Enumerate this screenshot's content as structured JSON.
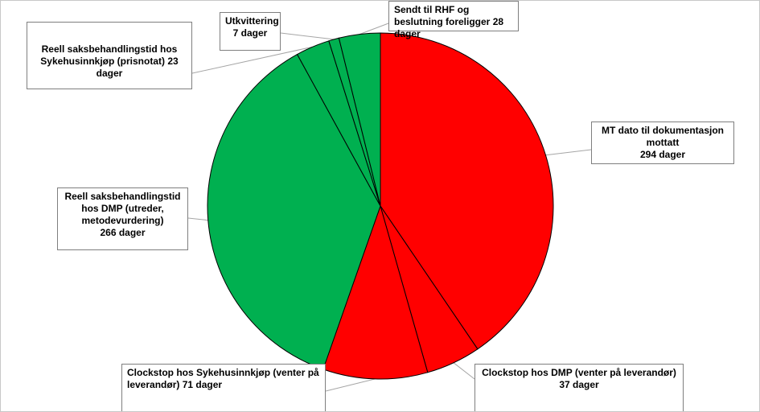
{
  "chart_data": {
    "type": "pie",
    "title": "",
    "slices": [
      {
        "label": "MT dato til dokumentasjon mottatt",
        "value_text": "294 dager",
        "value": 294,
        "color": "#ff0000"
      },
      {
        "label": "Clockstop hos DMP (venter på leverandør)",
        "value_text": "37 dager",
        "value": 37,
        "color": "#ff0000"
      },
      {
        "label": "Clockstop hos Sykehusinnkjøp (venter på leverandør)",
        "value_text": "71 dager",
        "value": 71,
        "color": "#ff0000"
      },
      {
        "label": "Reell saksbehandlingstid hos DMP (utreder, metodevurdering)",
        "value_text": "266 dager",
        "value": 266,
        "color": "#00b050"
      },
      {
        "label": "Reell saksbehandlingstid hos Sykehusinnkjøp (prisnotat)",
        "value_text": "23 dager",
        "value": 23,
        "color": "#00b050"
      },
      {
        "label": "Utkvittering",
        "value_text": "7 dager",
        "value": 7,
        "color": "#00b050"
      },
      {
        "label": "Sendt til RHF og beslutning foreligger",
        "value_text": "28 dager",
        "value": 28,
        "color": "#00b050"
      }
    ],
    "legend": "none",
    "start_angle": "top",
    "direction": "clockwise",
    "stroke_color": "#000000"
  }
}
